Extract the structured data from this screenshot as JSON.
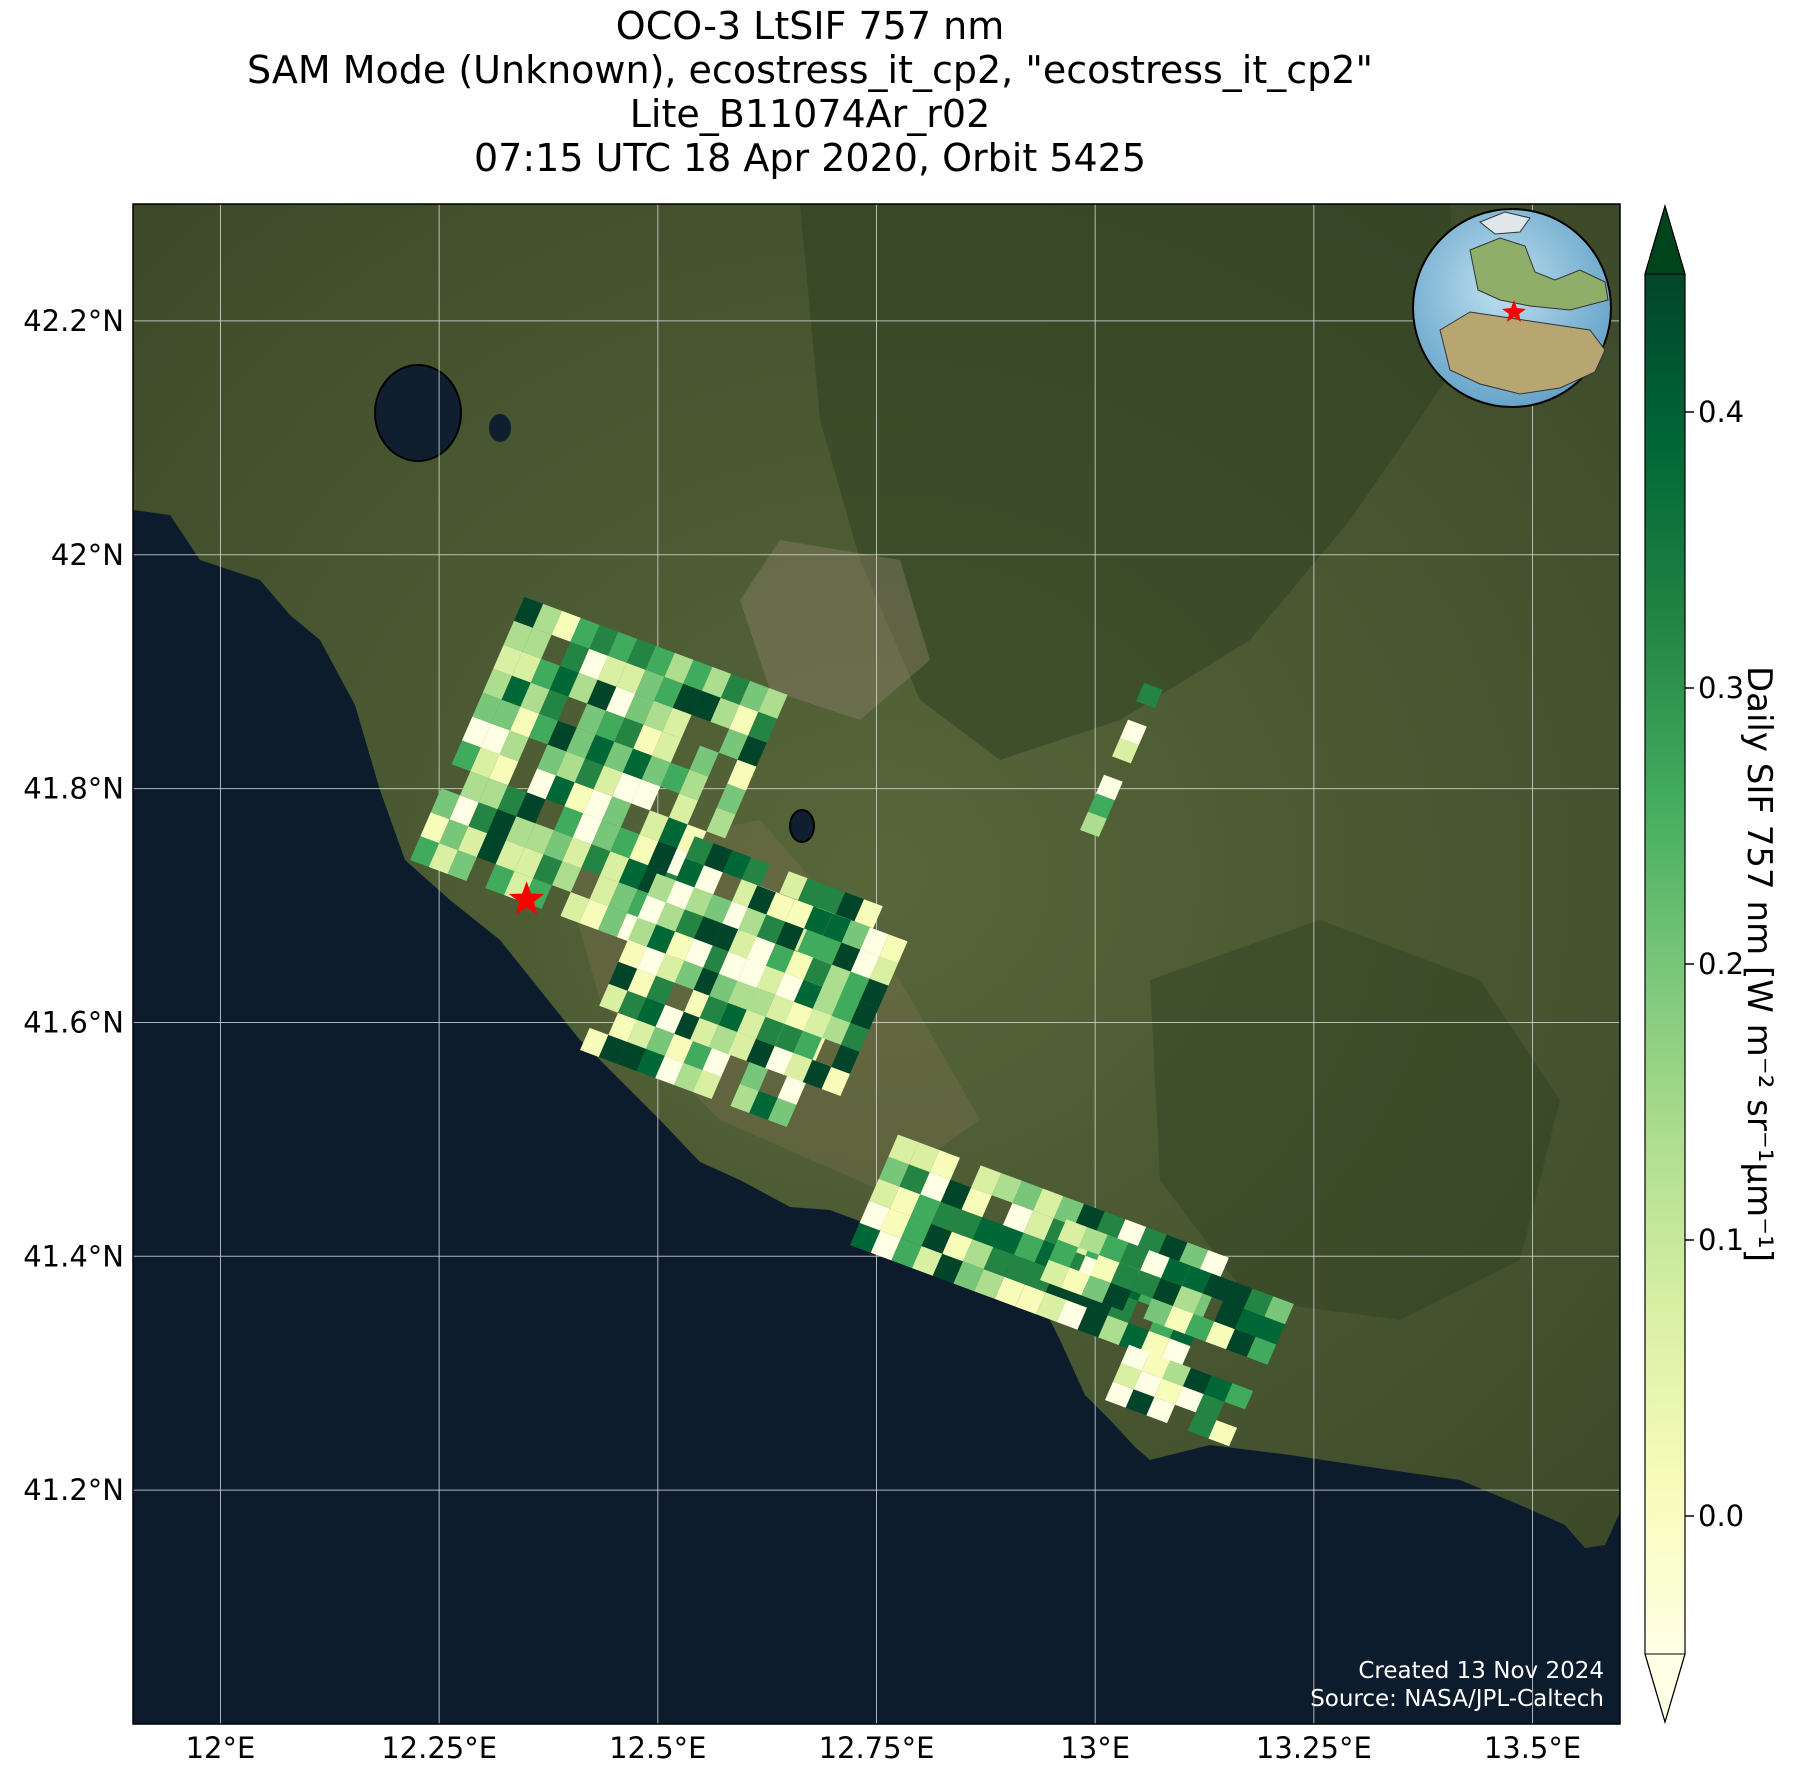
{
  "title": {
    "line1": "OCO-3 LtSIF 757 nm",
    "line2": "SAM Mode (Unknown), ecostress_it_cp2, \"ecostress_it_cp2\"",
    "line3": "Lite_B11074Ar_r02",
    "line4": "07:15 UTC 18 Apr 2020, Orbit 5425"
  },
  "map": {
    "lon_range": [
      11.9,
      13.6
    ],
    "lat_range": [
      41.0,
      42.3
    ],
    "lon_ticks": [
      {
        "value": 12.0,
        "label": "12°E"
      },
      {
        "value": 12.25,
        "label": "12.25°E"
      },
      {
        "value": 12.5,
        "label": "12.5°E"
      },
      {
        "value": 12.75,
        "label": "12.75°E"
      },
      {
        "value": 13.0,
        "label": "13°E"
      },
      {
        "value": 13.25,
        "label": "13.25°E"
      },
      {
        "value": 13.5,
        "label": "13.5°E"
      }
    ],
    "lat_ticks": [
      {
        "value": 41.2,
        "label": "41.2°N"
      },
      {
        "value": 41.4,
        "label": "41.4°N"
      },
      {
        "value": 41.6,
        "label": "41.6°N"
      },
      {
        "value": 41.8,
        "label": "41.8°N"
      },
      {
        "value": 42.0,
        "label": "42°N"
      },
      {
        "value": 42.2,
        "label": "42.2°N"
      }
    ],
    "grid": true,
    "target_marker": {
      "lon": 12.35,
      "lat": 41.705,
      "color": "#ff0000",
      "icon": "star-icon"
    },
    "inset_globe": {
      "placement": "top-right",
      "icon": "globe-icon"
    },
    "colors": {
      "sea": "#0d1c2d",
      "land": "#4a5a33",
      "grid": "#d9d9d9"
    }
  },
  "colorbar": {
    "label": "Daily SIF 757 nm [W m⁻² sr⁻¹μm⁻¹]",
    "range": [
      -0.05,
      0.45
    ],
    "ticks": [
      {
        "value": 0.0,
        "label": "0.0"
      },
      {
        "value": 0.1,
        "label": "0.1"
      },
      {
        "value": 0.2,
        "label": "0.2"
      },
      {
        "value": 0.3,
        "label": "0.3"
      },
      {
        "value": 0.4,
        "label": "0.4"
      }
    ],
    "colormap": "YlGn",
    "extend": "both"
  },
  "footer": {
    "created": "Created 13 Nov 2024",
    "source": "Source: NASA/JPL-Caltech"
  }
}
